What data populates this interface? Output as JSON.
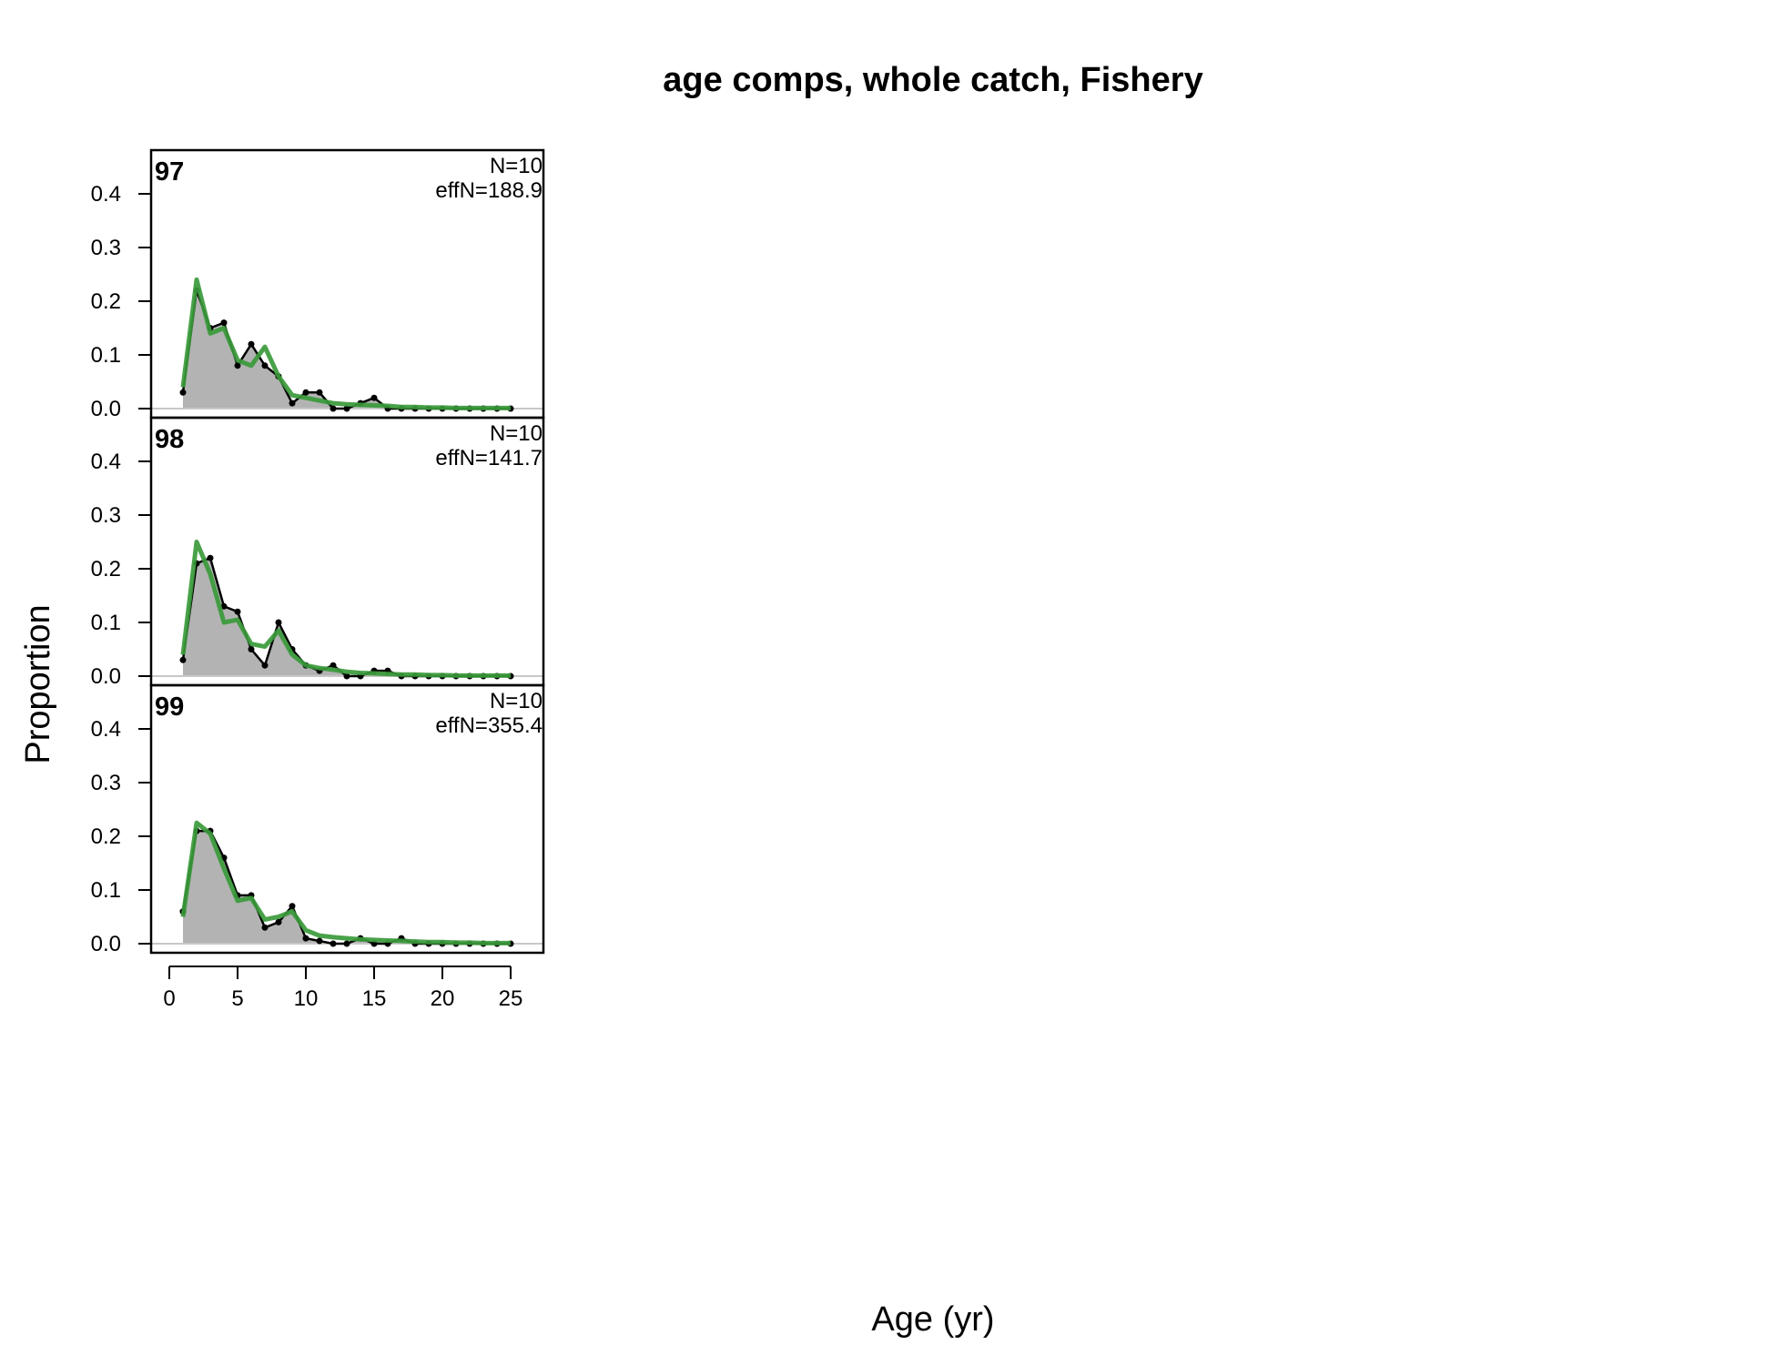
{
  "chart_data": {
    "type": "area",
    "title": "age comps, whole catch, Fishery",
    "xlabel": "Age (yr)",
    "ylabel": "Proportion",
    "xlim": [
      0,
      25
    ],
    "ylim": [
      0,
      0.45
    ],
    "x_ticks": [
      "0",
      "5",
      "10",
      "15",
      "20",
      "25"
    ],
    "y_ticks": [
      "0.0",
      "0.1",
      "0.2",
      "0.3",
      "0.4"
    ],
    "colors": {
      "observed_fill": "#b3b3b3",
      "observed_line": "#000000",
      "expected_line": "#3a9a3a",
      "zero_line": "#c8c8c8"
    },
    "panels": [
      {
        "label": "97",
        "n_text": "N=10",
        "effn_text": "effN=188.9",
        "ages": [
          1,
          2,
          3,
          4,
          5,
          6,
          7,
          8,
          9,
          10,
          11,
          12,
          13,
          14,
          15,
          16,
          17,
          18,
          19,
          20,
          21,
          22,
          23,
          24,
          25
        ],
        "observed": [
          0.03,
          0.22,
          0.15,
          0.16,
          0.08,
          0.12,
          0.08,
          0.06,
          0.01,
          0.03,
          0.03,
          0.0,
          0.0,
          0.01,
          0.02,
          0.0,
          0.0,
          0.0,
          0.0,
          0.0,
          0.0,
          0.0,
          0.0,
          0.0,
          0.0
        ],
        "expected": [
          0.04,
          0.24,
          0.14,
          0.15,
          0.09,
          0.08,
          0.115,
          0.06,
          0.025,
          0.02,
          0.015,
          0.01,
          0.008,
          0.007,
          0.006,
          0.005,
          0.003,
          0.003,
          0.002,
          0.002,
          0.001,
          0.001,
          0.001,
          0.001,
          0.001
        ]
      },
      {
        "label": "98",
        "n_text": "N=10",
        "effn_text": "effN=141.7",
        "ages": [
          1,
          2,
          3,
          4,
          5,
          6,
          7,
          8,
          9,
          10,
          11,
          12,
          13,
          14,
          15,
          16,
          17,
          18,
          19,
          20,
          21,
          22,
          23,
          24,
          25
        ],
        "observed": [
          0.03,
          0.21,
          0.22,
          0.13,
          0.12,
          0.05,
          0.02,
          0.1,
          0.05,
          0.02,
          0.01,
          0.02,
          0.0,
          0.0,
          0.01,
          0.01,
          0.0,
          0.0,
          0.0,
          0.0,
          0.0,
          0.0,
          0.0,
          0.0,
          0.0
        ],
        "expected": [
          0.04,
          0.25,
          0.19,
          0.1,
          0.105,
          0.06,
          0.055,
          0.085,
          0.04,
          0.02,
          0.015,
          0.012,
          0.008,
          0.006,
          0.005,
          0.004,
          0.003,
          0.003,
          0.002,
          0.002,
          0.001,
          0.001,
          0.001,
          0.001,
          0.001
        ]
      },
      {
        "label": "99",
        "n_text": "N=10",
        "effn_text": "effN=355.4",
        "ages": [
          1,
          2,
          3,
          4,
          5,
          6,
          7,
          8,
          9,
          10,
          11,
          12,
          13,
          14,
          15,
          16,
          17,
          18,
          19,
          20,
          21,
          22,
          23,
          24,
          25
        ],
        "observed": [
          0.06,
          0.21,
          0.21,
          0.16,
          0.09,
          0.09,
          0.03,
          0.04,
          0.07,
          0.01,
          0.005,
          0.0,
          0.0,
          0.01,
          0.0,
          0.0,
          0.01,
          0.0,
          0.0,
          0.0,
          0.0,
          0.0,
          0.0,
          0.0,
          0.0
        ],
        "expected": [
          0.05,
          0.225,
          0.205,
          0.14,
          0.08,
          0.085,
          0.045,
          0.05,
          0.06,
          0.025,
          0.015,
          0.012,
          0.01,
          0.008,
          0.007,
          0.006,
          0.005,
          0.004,
          0.003,
          0.003,
          0.002,
          0.002,
          0.001,
          0.001,
          0.001
        ]
      }
    ]
  }
}
